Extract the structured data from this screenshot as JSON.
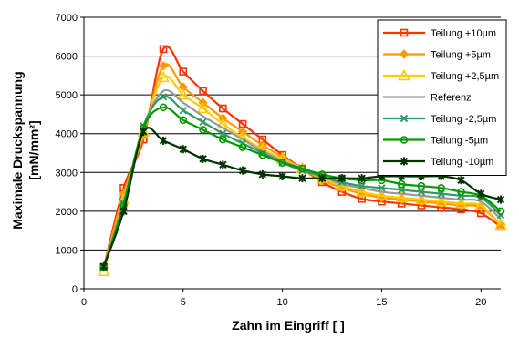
{
  "chart_data": {
    "type": "line",
    "xlabel": "Zahn im Eingriff [ ]",
    "ylabel_line1": "Maximale Druckspannung",
    "ylabel_line2": "[mN/mm²]",
    "xlim": [
      0,
      21
    ],
    "ylim": [
      0,
      7000
    ],
    "x_ticks": [
      0,
      5,
      10,
      15,
      20
    ],
    "y_ticks": [
      0,
      1000,
      2000,
      3000,
      4000,
      5000,
      6000,
      7000
    ],
    "grid": "horizontal",
    "legend_position": "top-right",
    "x": [
      1,
      2,
      3,
      4,
      5,
      6,
      7,
      8,
      9,
      10,
      11,
      12,
      13,
      14,
      15,
      16,
      17,
      18,
      19,
      20,
      21
    ],
    "series": [
      {
        "name": "Teilung +10µm",
        "color": "#ff3300",
        "marker": "square",
        "values": [
          550,
          2600,
          3850,
          6180,
          5600,
          5100,
          4650,
          4250,
          3850,
          3450,
          3100,
          2750,
          2500,
          2320,
          2250,
          2200,
          2150,
          2100,
          2050,
          1950,
          1600
        ]
      },
      {
        "name": "Teilung +5µm",
        "color": "#ff9900",
        "marker": "diamond",
        "values": [
          550,
          2450,
          3950,
          5750,
          5200,
          4800,
          4400,
          4050,
          3700,
          3400,
          3100,
          2800,
          2600,
          2450,
          2350,
          2300,
          2250,
          2200,
          2150,
          2100,
          1650
        ]
      },
      {
        "name": "Teilung +2,5µm",
        "color": "#ffcc00",
        "marker": "triangle",
        "values": [
          450,
          2300,
          4050,
          5450,
          5000,
          4650,
          4250,
          3900,
          3600,
          3350,
          3100,
          2850,
          2650,
          2500,
          2400,
          2350,
          2300,
          2250,
          2200,
          2150,
          1650
        ]
      },
      {
        "name": "Referenz",
        "color": "#999999",
        "marker": "none",
        "values": [
          550,
          2250,
          4150,
          5100,
          4800,
          4450,
          4150,
          3850,
          3550,
          3300,
          3100,
          2900,
          2700,
          2600,
          2500,
          2450,
          2400,
          2350,
          2300,
          2250,
          1800
        ]
      },
      {
        "name": "Teilung -2,5µm",
        "color": "#339966",
        "marker": "x",
        "values": [
          550,
          2200,
          4200,
          4950,
          4600,
          4300,
          4000,
          3750,
          3500,
          3250,
          3050,
          2900,
          2750,
          2650,
          2600,
          2550,
          2500,
          2450,
          2400,
          2350,
          1900
        ]
      },
      {
        "name": "Teilung -5µm",
        "color": "#009900",
        "marker": "circle",
        "values": [
          550,
          2150,
          4150,
          4680,
          4350,
          4100,
          3850,
          3650,
          3450,
          3250,
          3100,
          2950,
          2850,
          2800,
          2800,
          2700,
          2650,
          2600,
          2500,
          2400,
          2000
        ]
      },
      {
        "name": "Teilung -10µm",
        "color": "#003300",
        "marker": "star",
        "values": [
          580,
          2000,
          4050,
          3820,
          3600,
          3350,
          3200,
          3050,
          2950,
          2900,
          2850,
          2850,
          2850,
          2850,
          2900,
          2900,
          2900,
          2900,
          2800,
          2450,
          2300
        ]
      }
    ]
  }
}
